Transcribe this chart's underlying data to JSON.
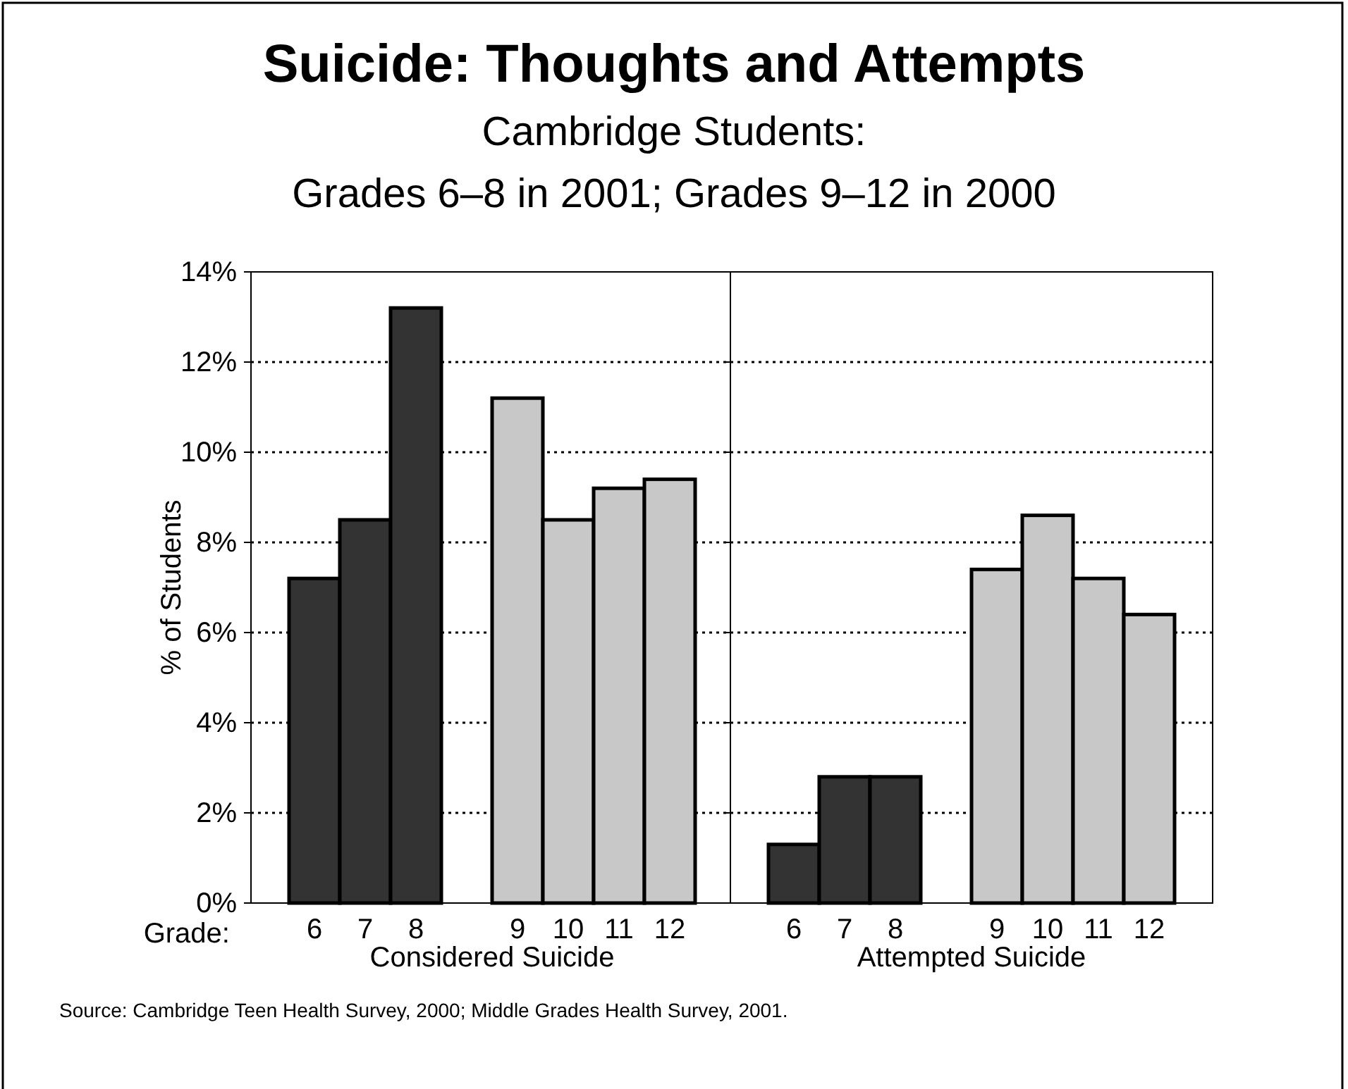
{
  "chart_data": [
    {
      "type": "bar",
      "title": "Suicide:  Thoughts and Attempts",
      "subtitle": "Cambridge Students:\nGrades 6–8 in 2001; Grades 9–12 in 2000",
      "ylabel": "% of Students",
      "xlabel": "Considered Suicide",
      "categories": [
        "6",
        "7",
        "8",
        null,
        "9",
        "10",
        "11",
        "12"
      ],
      "values": [
        7.2,
        8.5,
        13.2,
        null,
        11.2,
        8.5,
        9.2,
        9.4
      ],
      "colors": [
        "#333333",
        "#333333",
        "#333333",
        null,
        "#c8c8c8",
        "#c8c8c8",
        "#c8c8c8",
        "#c8c8c8"
      ],
      "ylim": [
        0,
        14
      ],
      "yticks": [
        {
          "value": 0,
          "label": "0%"
        },
        {
          "value": 2,
          "label": "2%"
        },
        {
          "value": 4,
          "label": "4%"
        },
        {
          "value": 6,
          "label": "6%"
        },
        {
          "value": 8,
          "label": "8%"
        },
        {
          "value": 10,
          "label": "10%"
        },
        {
          "value": 12,
          "label": "12%"
        },
        {
          "value": 14,
          "label": "14%"
        }
      ],
      "grid": "y",
      "annotations": [
        "Grade:",
        "Source:  Cambridge Teen Health Survey, 2000; Middle Grades Health Survey, 2001."
      ]
    },
    {
      "type": "bar",
      "xlabel": "Attempted Suicide",
      "categories": [
        "6",
        "7",
        "8",
        null,
        "9",
        "10",
        "11",
        "12"
      ],
      "values": [
        1.3,
        2.8,
        2.8,
        null,
        7.4,
        8.6,
        7.2,
        6.4
      ],
      "colors": [
        "#333333",
        "#333333",
        "#333333",
        null,
        "#c8c8c8",
        "#c8c8c8",
        "#c8c8c8",
        "#c8c8c8"
      ],
      "ylim": [
        0,
        14
      ],
      "yticks": [
        {
          "value": 0,
          "label": null
        },
        {
          "value": 2,
          "label": null
        },
        {
          "value": 4,
          "label": null
        },
        {
          "value": 6,
          "label": null
        },
        {
          "value": 8,
          "label": null
        },
        {
          "value": 10,
          "label": null
        },
        {
          "value": 12,
          "label": null
        },
        {
          "value": 14,
          "label": null
        }
      ],
      "grid": "y",
      "tick_labels": "x"
    }
  ]
}
